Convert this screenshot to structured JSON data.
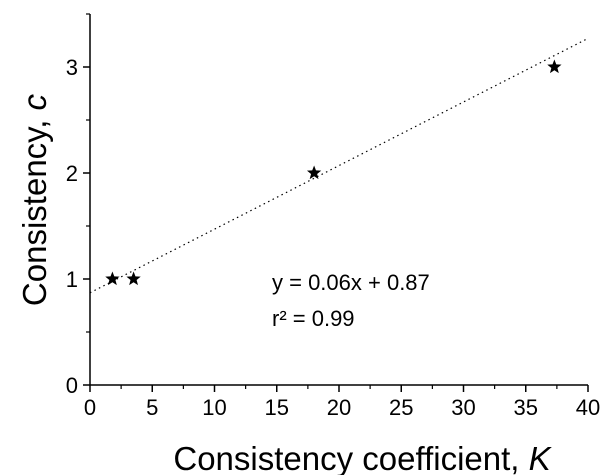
{
  "chart_data": {
    "type": "scatter",
    "xlabel": "Consistency coefficient, ",
    "xlabel_var": "K",
    "ylabel": "Consistency, ",
    "ylabel_var": "c",
    "xlim": [
      0,
      40
    ],
    "ylim": [
      0,
      3.5
    ],
    "xticks": [
      "0",
      "5",
      "10",
      "15",
      "20",
      "25",
      "30",
      "35",
      "40"
    ],
    "yticks": [
      "0",
      "1",
      "2",
      "3"
    ],
    "grid": false,
    "marker": "star",
    "points": [
      {
        "x": 1.8,
        "y": 1
      },
      {
        "x": 3.5,
        "y": 1
      },
      {
        "x": 18.0,
        "y": 2
      },
      {
        "x": 37.3,
        "y": 3
      }
    ],
    "trendline": {
      "style": "dotted",
      "slope": 0.06,
      "intercept": 0.87,
      "x_range": [
        0,
        40
      ]
    },
    "annotation": {
      "equation": "y = 0.06x + 0.87",
      "r2": "r² = 0.99"
    }
  }
}
